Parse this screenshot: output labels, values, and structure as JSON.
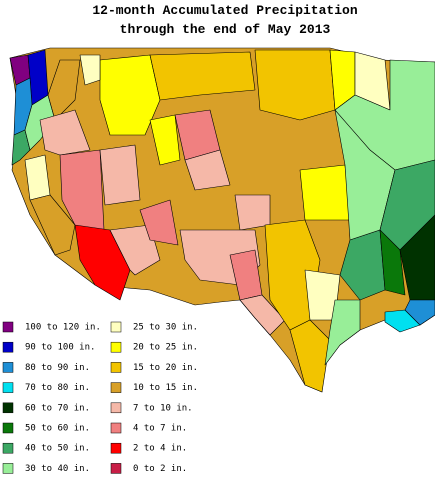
{
  "header": {
    "title_line1": "12-month Accumulated Precipitation",
    "title_line2": "through the end of May 2013"
  },
  "legend": [
    {
      "label": "100 to 120 in.",
      "color": "#800080"
    },
    {
      "label": "90 to 100 in.",
      "color": "#0000c8"
    },
    {
      "label": "80 to 90 in.",
      "color": "#1e8fd6"
    },
    {
      "label": "70 to 80 in.",
      "color": "#00e0f0"
    },
    {
      "label": "60 to 70 in.",
      "color": "#003200"
    },
    {
      "label": "50 to 60 in.",
      "color": "#0a780a"
    },
    {
      "label": "40 to 50 in.",
      "color": "#3ca864"
    },
    {
      "label": "30 to 40 in.",
      "color": "#98ee98"
    },
    {
      "label": "25 to 30 in.",
      "color": "#ffffc0"
    },
    {
      "label": "20 to 25 in.",
      "color": "#ffff00"
    },
    {
      "label": "15 to 20 in.",
      "color": "#f2c400"
    },
    {
      "label": "10 to 15 in.",
      "color": "#d8a028"
    },
    {
      "label": "7 to 10 in.",
      "color": "#f5b8a8"
    },
    {
      "label": "4 to 7 in.",
      "color": "#f08080"
    },
    {
      "label": "2 to 4 in.",
      "color": "#ff0000"
    },
    {
      "label": "0 to 2 in.",
      "color": "#c81e46"
    }
  ]
}
